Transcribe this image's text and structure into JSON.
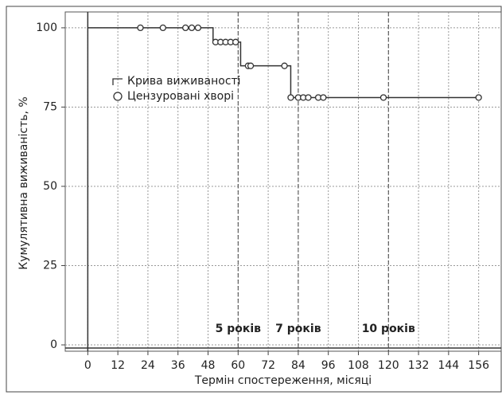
{
  "chart_data": {
    "type": "step",
    "xlabel": "Термін спостереження, місяці",
    "ylabel": "Кумулятивна виживаність, %",
    "xlim": [
      -9,
      165
    ],
    "ylim": [
      -2,
      105
    ],
    "xticks": [
      0,
      12,
      24,
      36,
      48,
      60,
      72,
      84,
      96,
      108,
      120,
      132,
      144,
      156
    ],
    "yticks": [
      0,
      25,
      50,
      75,
      100
    ],
    "grid": true,
    "legend": "upper left",
    "series": [
      {
        "name": "Крива виживаності",
        "type": "step",
        "color": "#333333",
        "x": [
          0,
          50,
          61,
          81,
          156
        ],
        "values": [
          100,
          95.5,
          88,
          78,
          78
        ]
      },
      {
        "name": "Цензуровані хворі",
        "type": "scatter",
        "color": "#333333",
        "x": [
          21,
          30,
          39,
          41.5,
          44,
          51,
          53,
          55,
          57,
          59,
          64,
          65,
          78.5,
          81,
          84,
          86,
          88,
          92,
          94,
          118,
          156
        ],
        "values": [
          100,
          100,
          100,
          100,
          100,
          95.5,
          95.5,
          95.5,
          95.5,
          95.5,
          88,
          88,
          88,
          78,
          78,
          78,
          78,
          78,
          78,
          78,
          78
        ]
      }
    ],
    "vlines": [
      {
        "value": 60,
        "label": "5 років"
      },
      {
        "value": 84,
        "label": "7 років"
      },
      {
        "value": 120,
        "label": "10 років"
      }
    ]
  }
}
